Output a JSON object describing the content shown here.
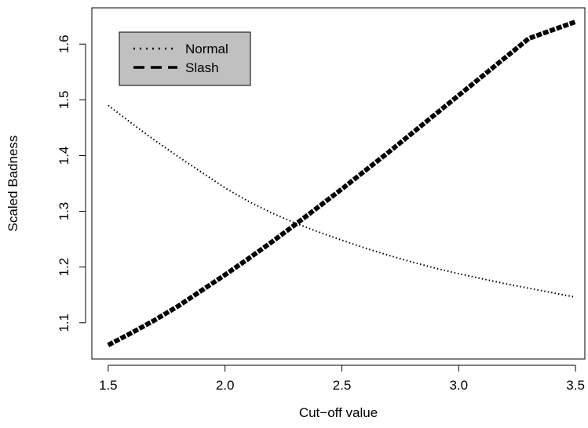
{
  "chart_data": {
    "type": "line",
    "title": "",
    "xlabel": "Cut−off value",
    "ylabel": "Scaled Badness",
    "xlim": [
      1.43,
      3.54
    ],
    "ylim": [
      1.035,
      1.665
    ],
    "xticks": [
      1.5,
      2.0,
      2.5,
      3.0,
      3.5
    ],
    "xtick_labels": [
      "1.5",
      "2.0",
      "2.5",
      "3.0",
      "3.5"
    ],
    "yticks": [
      1.1,
      1.2,
      1.3,
      1.4,
      1.5,
      1.6
    ],
    "ytick_labels": [
      "1.1",
      "1.2",
      "1.3",
      "1.4",
      "1.5",
      "1.6"
    ],
    "grid": false,
    "legend_position": "top-left",
    "legend_background": "#c0c0c0",
    "series": [
      {
        "name": "Normal",
        "style": "dotted",
        "color": "#000000",
        "x": [
          1.5,
          1.6,
          1.7,
          1.8,
          1.9,
          2.0,
          2.1,
          2.2,
          2.3,
          2.4,
          2.5,
          2.6,
          2.7,
          2.8,
          2.9,
          3.0,
          3.1,
          3.2,
          3.3,
          3.4,
          3.5
        ],
        "y": [
          1.49,
          1.458,
          1.427,
          1.398,
          1.37,
          1.342,
          1.318,
          1.297,
          1.279,
          1.263,
          1.248,
          1.234,
          1.221,
          1.209,
          1.198,
          1.188,
          1.179,
          1.17,
          1.162,
          1.154,
          1.146
        ]
      },
      {
        "name": "Slash",
        "style": "dashed",
        "color": "#000000",
        "x": [
          1.5,
          1.6,
          1.7,
          1.8,
          1.9,
          2.0,
          2.1,
          2.2,
          2.3,
          2.4,
          2.5,
          2.6,
          2.7,
          2.8,
          2.9,
          3.0,
          3.1,
          3.2,
          3.3,
          3.4,
          3.5
        ],
        "y": [
          1.06,
          1.082,
          1.105,
          1.13,
          1.158,
          1.186,
          1.215,
          1.245,
          1.276,
          1.308,
          1.34,
          1.373,
          1.406,
          1.44,
          1.474,
          1.508,
          1.542,
          1.576,
          1.61,
          1.625,
          1.64
        ]
      }
    ]
  }
}
